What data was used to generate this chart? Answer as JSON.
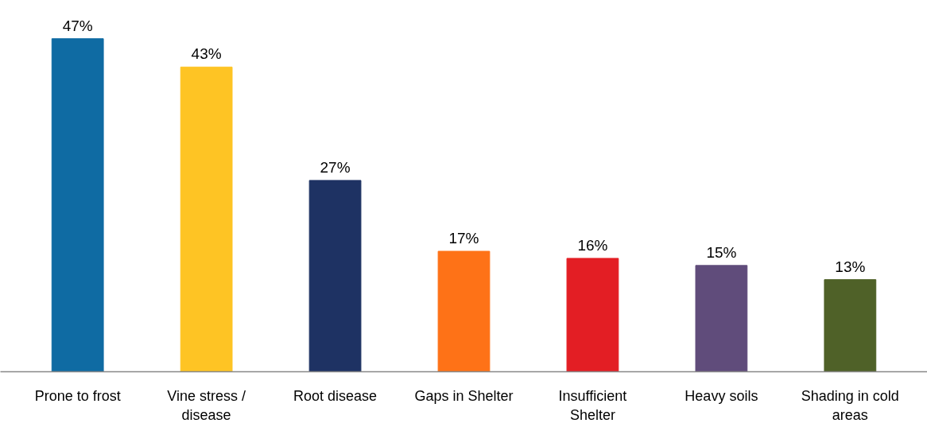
{
  "chart_data": {
    "type": "bar",
    "categories": [
      "Prone to frost",
      "Vine stress / disease",
      "Root disease",
      "Gaps in Shelter",
      "Insufficient Shelter",
      "Heavy soils",
      "Shading in cold areas"
    ],
    "values": [
      47,
      43,
      27,
      17,
      16,
      15,
      13
    ],
    "colors": [
      "#0f6ba3",
      "#fec424",
      "#1e3263",
      "#fe7217",
      "#e31e24",
      "#604c7b",
      "#4f6128"
    ],
    "value_labels": [
      "47%",
      "43%",
      "27%",
      "17%",
      "16%",
      "15%",
      "13%"
    ],
    "grid": false
  }
}
